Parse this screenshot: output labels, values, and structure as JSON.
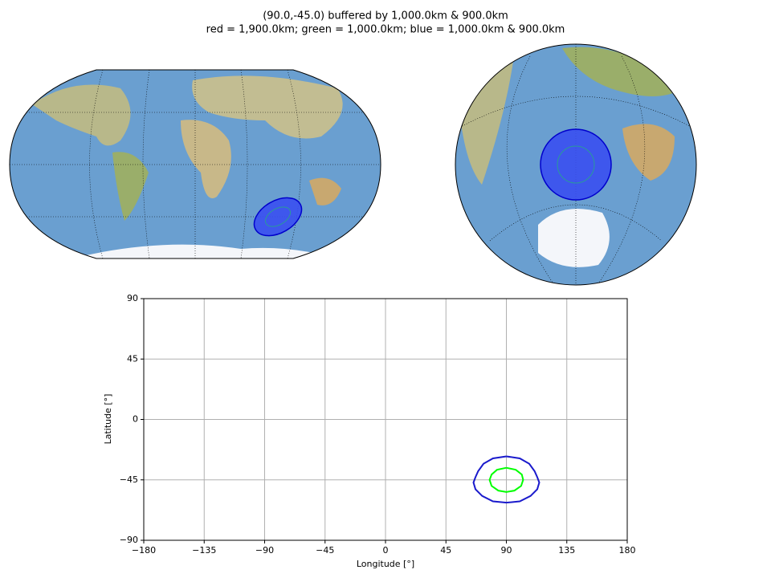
{
  "title": [
    "(90.0,-45.0) buffered by 1,000.0km & 900.0km",
    "red = 1,900.0km; green = 1,000.0km; blue = 1,000.0km & 900.0km"
  ],
  "chart_data": {
    "type": "line",
    "xlabel": "Longitude [°]",
    "ylabel": "Latitude [°]",
    "xlim": [
      -180,
      180
    ],
    "ylim": [
      -90,
      90
    ],
    "xticks": [
      {
        "value": -180,
        "label": "−180"
      },
      {
        "value": -135,
        "label": "−135"
      },
      {
        "value": -90,
        "label": "−90"
      },
      {
        "value": -45,
        "label": "−45"
      },
      0,
      45,
      90,
      135,
      180
    ],
    "yticks": [
      {
        "value": -90,
        "label": "−90"
      },
      {
        "value": -45,
        "label": "−45"
      },
      0,
      45,
      90
    ],
    "grid": true,
    "series": [
      {
        "color": "#1a1acc",
        "x": [
          90,
          100,
          107,
          111,
          113,
          114.5,
          113,
          108,
          100,
          90,
          80,
          72,
          67,
          65.5,
          67,
          69,
          73,
          80,
          90
        ],
        "values": [
          -27.5,
          -29,
          -33,
          -38.5,
          -43,
          -47,
          -52,
          -57,
          -61,
          -62,
          -61,
          -57,
          -52,
          -47,
          -43,
          -38.5,
          -33,
          -29,
          -27.5
        ]
      },
      {
        "color": "#00ff00",
        "x": [
          90,
          97,
          101.5,
          102.5,
          101,
          96,
          90,
          84,
          79,
          77.5,
          79,
          83,
          90
        ],
        "values": [
          -36,
          -37.5,
          -41,
          -45,
          -49.5,
          -53,
          -54,
          -53,
          -49.5,
          -45,
          -41,
          -37.5,
          -36
        ]
      }
    ]
  }
}
